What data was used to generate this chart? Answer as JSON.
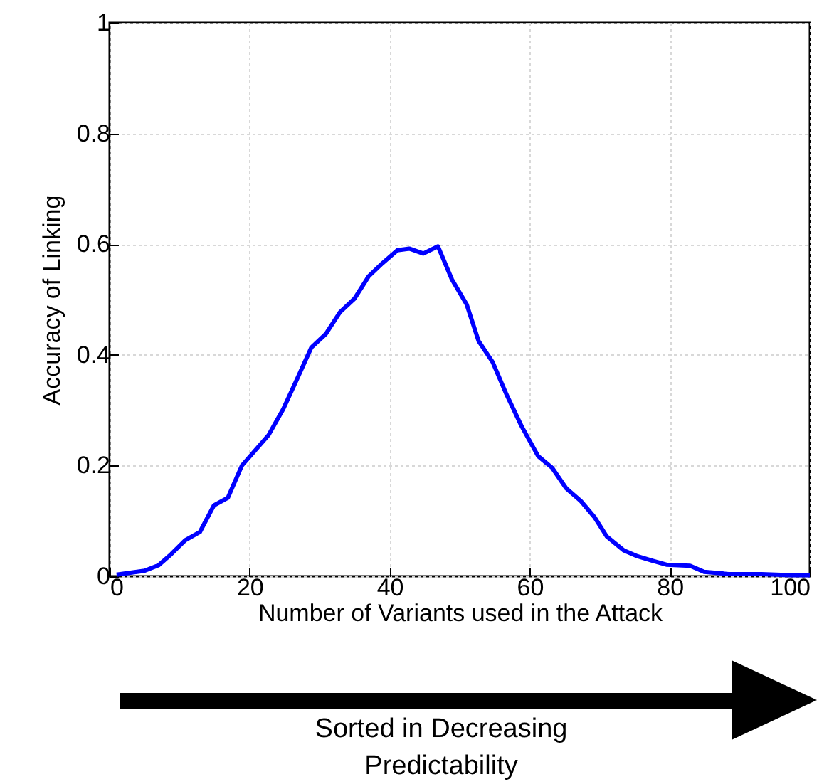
{
  "chart_data": {
    "type": "line",
    "xlabel": "Number of Variants used in the Attack",
    "ylabel": "Accuracy of Linking",
    "x": [
      1,
      5,
      7,
      8.8,
      10.8,
      12.9,
      14.9,
      16.9,
      18.9,
      22.7,
      24.8,
      26.8,
      28.8,
      30.9,
      32.9,
      35,
      37,
      39,
      41.1,
      42.8,
      44.8,
      46.9,
      48.9,
      51,
      52.7,
      54.7,
      56.7,
      58.8,
      61.2,
      63.2,
      65.2,
      67.3,
      69.3,
      71,
      73.4,
      75.4,
      77.5,
      79.5,
      82.9,
      84.9,
      88.4,
      93.1,
      97.2,
      100
    ],
    "series": [
      {
        "color": "#0000ff",
        "values": [
          0.003,
          0.01,
          0.02,
          0.04,
          0.065,
          0.08,
          0.128,
          0.142,
          0.2,
          0.255,
          0.302,
          0.357,
          0.413,
          0.438,
          0.477,
          0.502,
          0.542,
          0.566,
          0.589,
          0.592,
          0.583,
          0.596,
          0.536,
          0.491,
          0.425,
          0.387,
          0.328,
          0.272,
          0.217,
          0.196,
          0.159,
          0.136,
          0.106,
          0.072,
          0.047,
          0.036,
          0.028,
          0.021,
          0.019,
          0.008,
          0.004,
          0.004,
          0.002,
          0.002
        ]
      }
    ],
    "xlim": [
      0,
      100
    ],
    "xticks": [
      0,
      20,
      40,
      60,
      80,
      100
    ],
    "ylim": [
      0,
      1
    ],
    "yticks": [
      0,
      0.2,
      0.4,
      0.6,
      0.8,
      1
    ],
    "grid": true,
    "marker": "none",
    "line_style": "solid",
    "annotations": [
      "Sorted in Decreasing Predictability"
    ]
  }
}
